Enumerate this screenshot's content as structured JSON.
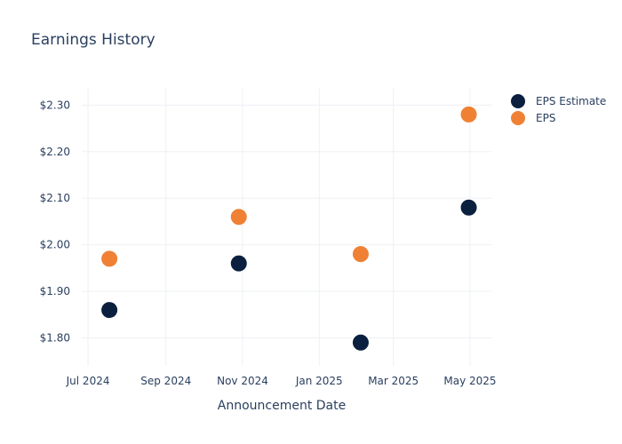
{
  "chart_data": {
    "type": "scatter",
    "title": "Earnings History",
    "xlabel": "Announcement Date",
    "ylabel": "",
    "x_ticks": [
      "Jul 2024",
      "Sep 2024",
      "Nov 2024",
      "Jan 2025",
      "Mar 2025",
      "May 2025"
    ],
    "y_ticks": [
      "$1.80",
      "$1.90",
      "$2.00",
      "$2.10",
      "$2.20",
      "$2.30"
    ],
    "ylim": [
      1.74,
      2.335
    ],
    "xlim": [
      "2024-06-26",
      "2025-05-18"
    ],
    "grid": true,
    "legend_position": "top-right",
    "series": [
      {
        "name": "EPS Estimate",
        "color": "#0b1f3f",
        "points": [
          {
            "x": "2024-07-18",
            "y": 1.86
          },
          {
            "x": "2024-10-29",
            "y": 1.96
          },
          {
            "x": "2025-02-03",
            "y": 1.79
          },
          {
            "x": "2025-04-30",
            "y": 2.08
          }
        ]
      },
      {
        "name": "EPS",
        "color": "#f08134",
        "points": [
          {
            "x": "2024-07-18",
            "y": 1.97
          },
          {
            "x": "2024-10-29",
            "y": 2.06
          },
          {
            "x": "2025-02-03",
            "y": 1.98
          },
          {
            "x": "2025-04-30",
            "y": 2.28
          }
        ]
      }
    ]
  }
}
